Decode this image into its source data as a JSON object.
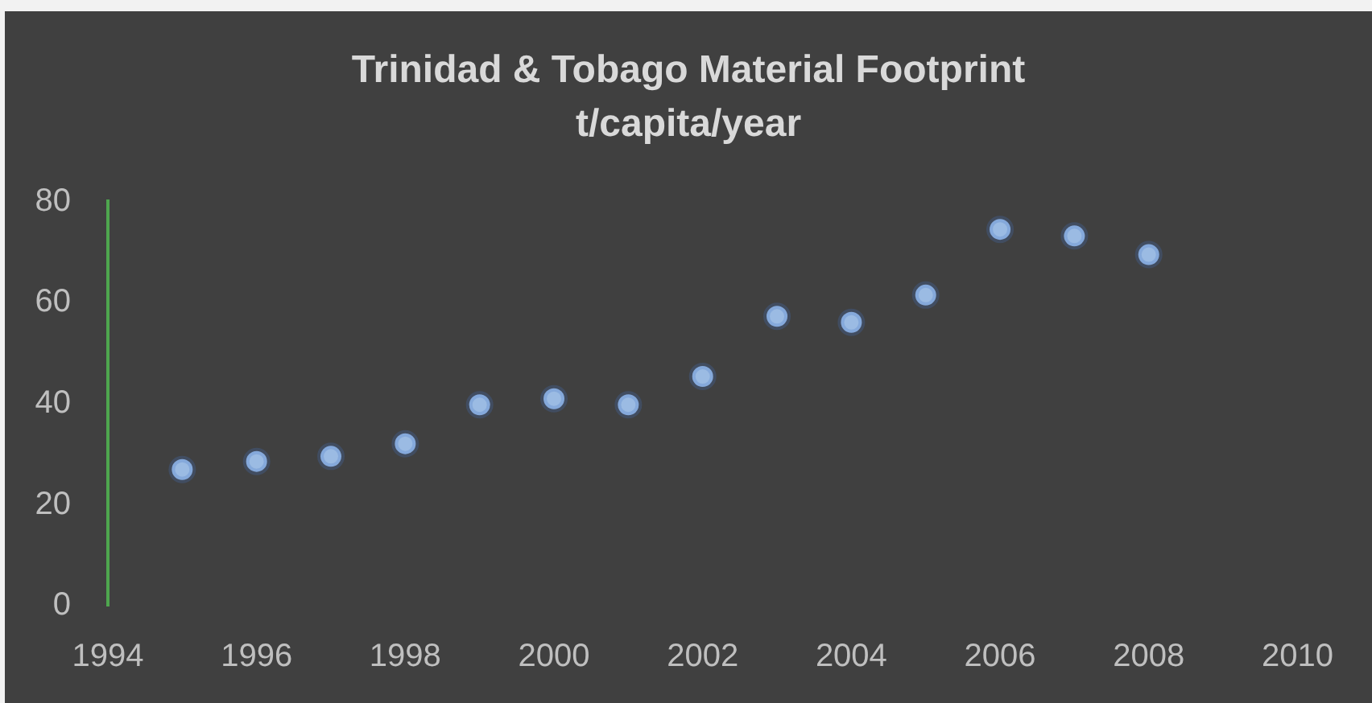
{
  "chart_data": {
    "type": "scatter",
    "title": "Trinidad & Tobago Material Footprint",
    "subtitle": "t/capita/year",
    "x": [
      1995,
      1996,
      1997,
      1998,
      1999,
      2000,
      2001,
      2002,
      2003,
      2004,
      2005,
      2006,
      2007,
      2008
    ],
    "values": [
      27.0,
      28.6,
      29.6,
      32.1,
      39.8,
      41.0,
      39.8,
      45.4,
      57.3,
      56.1,
      61.5,
      74.5,
      73.2,
      69.5
    ],
    "color": "#9bbbe3",
    "marker": "circle",
    "xlim": [
      1994,
      2010
    ],
    "xticks": [
      1994,
      1996,
      1998,
      2000,
      2002,
      2004,
      2006,
      2008,
      2010
    ],
    "ylim": [
      0,
      80
    ],
    "yticks": [
      0,
      20,
      40,
      60,
      80
    ],
    "grid": false
  }
}
